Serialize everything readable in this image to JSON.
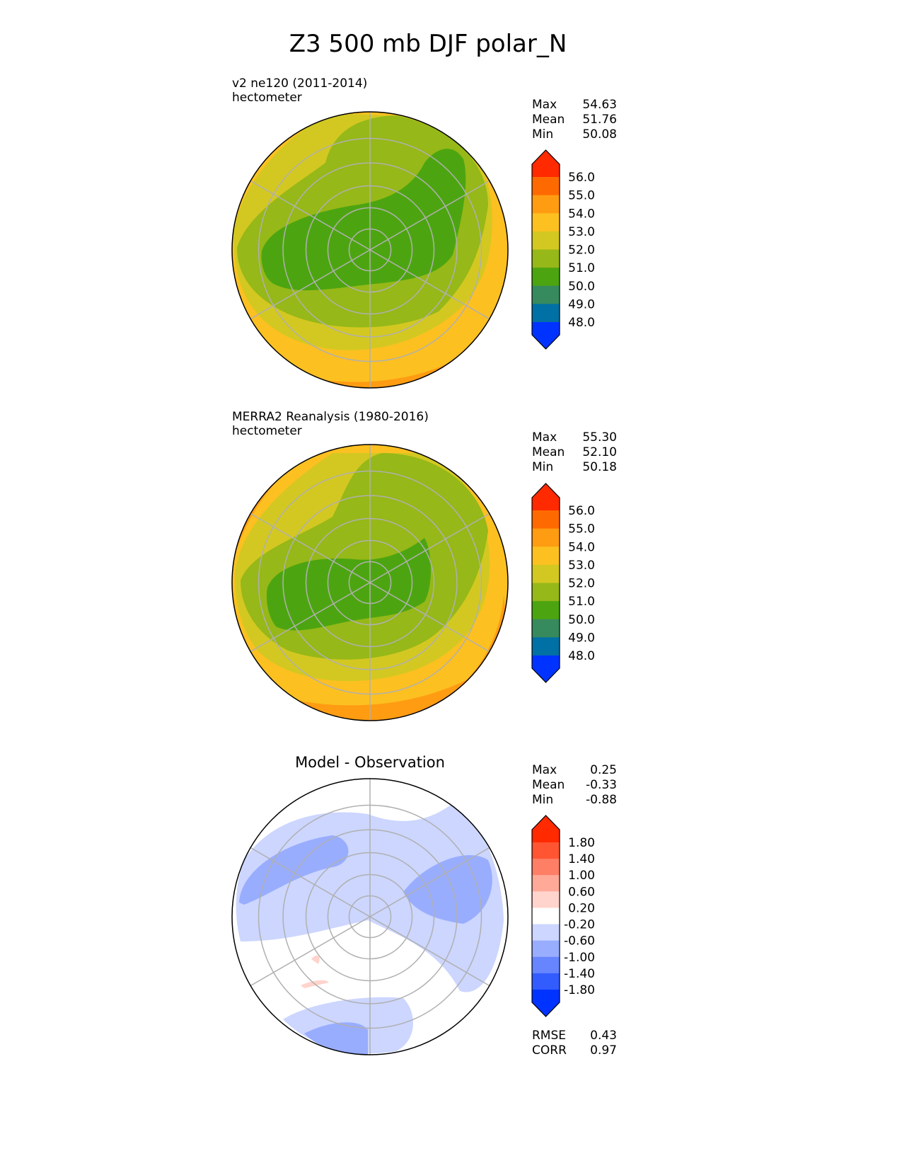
{
  "chart_data": {
    "type": "heatmap",
    "title": "Z3 500 mb DJF polar_N",
    "panels": [
      {
        "name": "test",
        "title": "v2 ne120 (2011-2014)",
        "units": "hectometer",
        "stats": {
          "Max": "54.63",
          "Mean": "51.76",
          "Min": "50.08"
        },
        "colorbar": {
          "labels": [
            "56.0",
            "55.0",
            "54.0",
            "53.0",
            "52.0",
            "51.0",
            "50.0",
            "49.0",
            "48.0"
          ],
          "colors": [
            "#ff2a00",
            "#ff6a00",
            "#ff9c12",
            "#fcc021",
            "#d3c821",
            "#96b818",
            "#4ca510",
            "#378a5e",
            "#0070a5",
            "#0033ff"
          ]
        }
      },
      {
        "name": "reference",
        "title": "MERRA2 Reanalysis (1980-2016)",
        "units": "hectometer",
        "stats": {
          "Max": "55.30",
          "Mean": "52.10",
          "Min": "50.18"
        },
        "colorbar": {
          "labels": [
            "56.0",
            "55.0",
            "54.0",
            "53.0",
            "52.0",
            "51.0",
            "50.0",
            "49.0",
            "48.0"
          ],
          "colors": [
            "#ff2a00",
            "#ff6a00",
            "#ff9c12",
            "#fcc021",
            "#d3c821",
            "#96b818",
            "#4ca510",
            "#378a5e",
            "#0070a5",
            "#0033ff"
          ]
        }
      },
      {
        "name": "difference",
        "title": "Model - Observation",
        "units": "",
        "stats": {
          "Max": "0.25",
          "Mean": "-0.33",
          "Min": "-0.88"
        },
        "metrics": {
          "RMSE": "0.43",
          "CORR": "0.97"
        },
        "colorbar": {
          "labels": [
            "1.80",
            "1.40",
            "1.00",
            "0.60",
            "0.20",
            "-0.20",
            "-0.60",
            "-1.00",
            "-1.40",
            "-1.80"
          ],
          "colors": [
            "#ff2a00",
            "#ff5533",
            "#ff7f66",
            "#ffaa99",
            "#ffd4cc",
            "#ffffff",
            "#ccd6ff",
            "#99adff",
            "#6685ff",
            "#335cff",
            "#0033ff"
          ]
        }
      }
    ],
    "projection": "north polar stereographic",
    "grid": true
  }
}
